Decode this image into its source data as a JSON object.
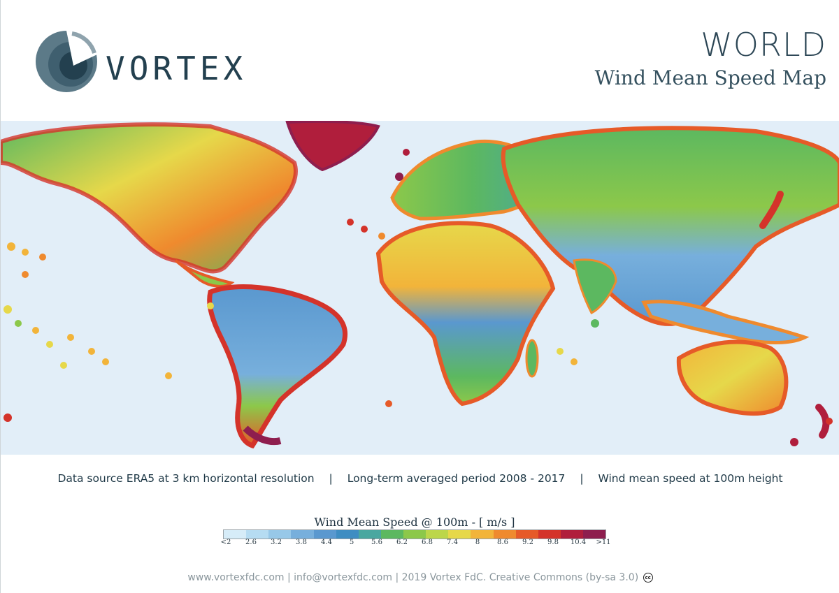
{
  "brand": {
    "name": "VORTEX"
  },
  "header": {
    "title": "WORLD",
    "subtitle": "Wind Mean Speed Map"
  },
  "info": {
    "source": "Data source ERA5 at 3 km horizontal  resolution",
    "period": "Long-term averaged period 2008 - 2017",
    "height": "Wind mean speed at 100m height",
    "separator": "|"
  },
  "legend": {
    "title": "Wind Mean Speed @ 100m - [ m/s ]",
    "ticks": [
      "<2",
      "2.6",
      "3.2",
      "3.8",
      "4.4",
      "5",
      "5.6",
      "6.2",
      "6.8",
      "7.4",
      "8",
      "8.6",
      "9.2",
      "9.8",
      "10.4",
      ">11"
    ],
    "colors": [
      "#d6ecf8",
      "#b6dcf2",
      "#97c8e8",
      "#77afdc",
      "#5a98cf",
      "#3f8dc2",
      "#4aa7a0",
      "#5cb860",
      "#8cc84a",
      "#bcd64a",
      "#e6d84a",
      "#f2b43a",
      "#ef8a2e",
      "#e65a28",
      "#d4332a",
      "#b01e3c",
      "#8e1e4e"
    ]
  },
  "footer": {
    "text": "www.vortexfdc.com | info@vortexfdc.com | 2019 Vortex FdC.  Creative Commons (by-sa 3.0)",
    "cc_glyph": "cc"
  },
  "colors": {
    "ocean": "#e2eef8",
    "text": "#23404f"
  }
}
